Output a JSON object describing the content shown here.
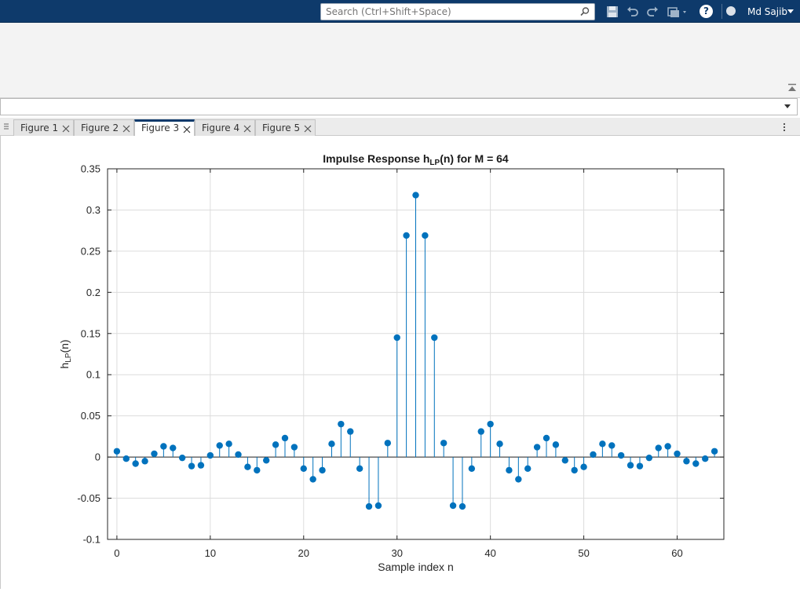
{
  "header": {
    "search_placeholder": "Search (Ctrl+Shift+Space)",
    "help_label": "?",
    "user_name": "Md Sajib",
    "icons": [
      "save-icon",
      "undo-icon",
      "redo-icon",
      "window-switch-icon",
      "help-icon",
      "notification-icon"
    ]
  },
  "tabs": [
    {
      "label": "Figure 1",
      "active": false
    },
    {
      "label": "Figure 2",
      "active": false
    },
    {
      "label": "Figure 3",
      "active": true
    },
    {
      "label": "Figure 4",
      "active": false
    },
    {
      "label": "Figure 5",
      "active": false
    }
  ],
  "colors": {
    "accent": "#0e3a6b",
    "stem": "#0072bd"
  },
  "chart_data": {
    "type": "stem",
    "title": "Impulse Response h_LP(n) for M = 64",
    "title_parts": {
      "pre": "Impulse  Response  h",
      "sub": "LP",
      "post": "(n)  for  M  =  64"
    },
    "xlabel": "Sample index n",
    "ylabel_parts": {
      "pre": "h",
      "sub": "LP",
      "post": "(n)"
    },
    "xlim": [
      -1,
      65
    ],
    "ylim": [
      -0.1,
      0.35
    ],
    "xticks": [
      0,
      10,
      20,
      30,
      40,
      50,
      60
    ],
    "xtick_labels": [
      "0",
      "10",
      "20",
      "30",
      "40",
      "50",
      "60"
    ],
    "yticks": [
      -0.1,
      -0.05,
      0,
      0.05,
      0.1,
      0.15,
      0.2,
      0.25,
      0.3,
      0.35
    ],
    "ytick_labels": [
      "-0.1",
      "-0.05",
      "0",
      "0.05",
      "0.1",
      "0.15",
      "0.2",
      "0.25",
      "0.3",
      "0.35"
    ],
    "grid": true,
    "x": [
      0,
      1,
      2,
      3,
      4,
      5,
      6,
      7,
      8,
      9,
      10,
      11,
      12,
      13,
      14,
      15,
      16,
      17,
      18,
      19,
      20,
      21,
      22,
      23,
      24,
      25,
      26,
      27,
      28,
      29,
      30,
      31,
      32,
      33,
      34,
      35,
      36,
      37,
      38,
      39,
      40,
      41,
      42,
      43,
      44,
      45,
      46,
      47,
      48,
      49,
      50,
      51,
      52,
      53,
      54,
      55,
      56,
      57,
      58,
      59,
      60,
      61,
      62,
      63,
      64
    ],
    "values": [
      0.007,
      -0.002,
      -0.008,
      -0.005,
      0.004,
      0.013,
      0.011,
      -0.001,
      -0.011,
      -0.01,
      0.002,
      0.014,
      0.016,
      0.003,
      -0.012,
      -0.016,
      -0.004,
      0.015,
      0.023,
      0.012,
      -0.014,
      -0.027,
      -0.016,
      0.016,
      0.04,
      0.031,
      -0.014,
      -0.06,
      -0.059,
      0.017,
      0.145,
      0.269,
      0.318,
      0.269,
      0.145,
      0.017,
      -0.059,
      -0.06,
      -0.014,
      0.031,
      0.04,
      0.016,
      -0.016,
      -0.027,
      -0.014,
      0.012,
      0.023,
      0.015,
      -0.004,
      -0.016,
      -0.012,
      0.003,
      0.016,
      0.014,
      0.002,
      -0.01,
      -0.011,
      -0.001,
      0.011,
      0.013,
      0.004,
      -0.005,
      -0.008,
      -0.002,
      0.007
    ]
  }
}
